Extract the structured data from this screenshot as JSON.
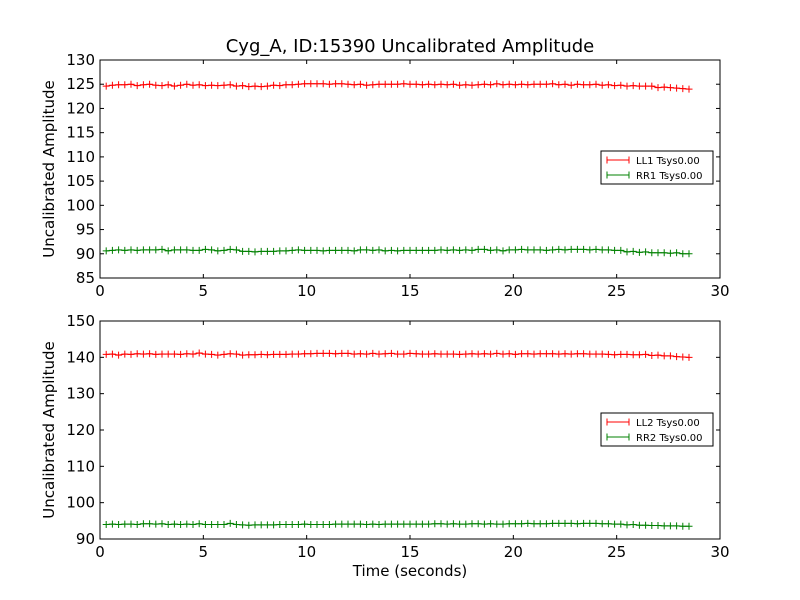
{
  "figure": {
    "title": "Cyg_A, ID:15390 Uncalibrated Amplitude",
    "background": "#ffffff"
  },
  "chart_data": [
    {
      "type": "line",
      "title": "Cyg_A, ID:15390 Uncalibrated Amplitude",
      "xlabel": "",
      "ylabel": "Uncalibrated Amplitude",
      "xlim": [
        0,
        30
      ],
      "ylim": [
        85,
        130
      ],
      "xticks": [
        0,
        5,
        10,
        15,
        20,
        25,
        30
      ],
      "yticks": [
        85,
        90,
        95,
        100,
        105,
        110,
        115,
        120,
        125,
        130
      ],
      "grid": false,
      "legend_position": "right",
      "x": [
        0.3,
        0.6,
        0.9,
        1.2,
        1.5,
        1.8,
        2.1,
        2.4,
        2.7,
        3.0,
        3.3,
        3.6,
        3.9,
        4.2,
        4.5,
        4.8,
        5.1,
        5.4,
        5.7,
        6.0,
        6.3,
        6.6,
        6.9,
        7.2,
        7.5,
        7.8,
        8.1,
        8.4,
        8.7,
        9.0,
        9.3,
        9.6,
        9.9,
        10.2,
        10.5,
        10.8,
        11.1,
        11.4,
        11.7,
        12.0,
        12.3,
        12.6,
        12.9,
        13.2,
        13.5,
        13.8,
        14.1,
        14.4,
        14.7,
        15.0,
        15.3,
        15.6,
        15.9,
        16.2,
        16.5,
        16.8,
        17.1,
        17.4,
        17.7,
        18.0,
        18.3,
        18.6,
        18.9,
        19.2,
        19.5,
        19.8,
        20.1,
        20.4,
        20.7,
        21.0,
        21.3,
        21.6,
        21.9,
        22.2,
        22.5,
        22.8,
        23.1,
        23.4,
        23.7,
        24.0,
        24.3,
        24.6,
        24.9,
        25.2,
        25.5,
        25.8,
        26.1,
        26.4,
        26.7,
        27.0,
        27.3,
        27.6,
        27.9,
        28.2,
        28.5
      ],
      "series": [
        {
          "name": "LL1 Tsys0.00",
          "color": "#ff0000",
          "values": [
            124.6,
            124.8,
            124.9,
            124.9,
            125.0,
            124.7,
            124.9,
            125.0,
            124.8,
            124.7,
            124.9,
            124.6,
            124.8,
            125.0,
            124.8,
            124.9,
            124.7,
            124.8,
            124.7,
            124.8,
            124.9,
            124.6,
            124.7,
            124.5,
            124.6,
            124.5,
            124.6,
            124.8,
            124.7,
            124.9,
            124.9,
            125.0,
            125.1,
            125.1,
            125.1,
            125.1,
            125.0,
            125.1,
            125.1,
            125.0,
            124.9,
            125.0,
            124.8,
            124.9,
            125.0,
            125.0,
            125.0,
            125.0,
            125.1,
            125.0,
            125.0,
            124.9,
            125.0,
            124.9,
            125.0,
            124.9,
            125.0,
            124.8,
            124.9,
            124.8,
            124.9,
            125.0,
            124.9,
            125.1,
            124.9,
            125.0,
            124.9,
            125.0,
            124.9,
            125.0,
            125.0,
            125.0,
            125.1,
            124.9,
            125.0,
            124.8,
            125.0,
            124.9,
            124.9,
            125.0,
            124.8,
            124.9,
            124.7,
            124.8,
            124.6,
            124.7,
            124.6,
            124.6,
            124.6,
            124.3,
            124.4,
            124.3,
            124.2,
            124.1,
            124.0
          ]
        },
        {
          "name": "RR1 Tsys0.00",
          "color": "#008000",
          "values": [
            90.6,
            90.7,
            90.8,
            90.7,
            90.8,
            90.7,
            90.8,
            90.8,
            90.8,
            90.9,
            90.6,
            90.8,
            90.8,
            90.8,
            90.7,
            90.7,
            90.9,
            90.8,
            90.6,
            90.7,
            90.9,
            90.8,
            90.5,
            90.5,
            90.4,
            90.5,
            90.5,
            90.5,
            90.6,
            90.6,
            90.7,
            90.8,
            90.7,
            90.7,
            90.7,
            90.6,
            90.7,
            90.7,
            90.7,
            90.7,
            90.6,
            90.8,
            90.8,
            90.7,
            90.8,
            90.6,
            90.7,
            90.6,
            90.7,
            90.7,
            90.7,
            90.7,
            90.7,
            90.7,
            90.8,
            90.7,
            90.8,
            90.7,
            90.8,
            90.7,
            90.9,
            90.9,
            90.7,
            90.8,
            90.6,
            90.8,
            90.8,
            90.9,
            90.8,
            90.8,
            90.8,
            90.7,
            90.8,
            90.9,
            90.8,
            90.9,
            90.9,
            90.9,
            90.8,
            90.9,
            90.8,
            90.8,
            90.7,
            90.7,
            90.4,
            90.5,
            90.3,
            90.4,
            90.2,
            90.2,
            90.2,
            90.1,
            90.2,
            90.0,
            90.0
          ]
        }
      ]
    },
    {
      "type": "line",
      "title": "",
      "xlabel": "Time (seconds)",
      "ylabel": "Uncalibrated Amplitude",
      "xlim": [
        0,
        30
      ],
      "ylim": [
        90,
        150
      ],
      "xticks": [
        0,
        5,
        10,
        15,
        20,
        25,
        30
      ],
      "yticks": [
        90,
        100,
        110,
        120,
        130,
        140,
        150
      ],
      "grid": false,
      "legend_position": "right",
      "x": [
        0.3,
        0.6,
        0.9,
        1.2,
        1.5,
        1.8,
        2.1,
        2.4,
        2.7,
        3.0,
        3.3,
        3.6,
        3.9,
        4.2,
        4.5,
        4.8,
        5.1,
        5.4,
        5.7,
        6.0,
        6.3,
        6.6,
        6.9,
        7.2,
        7.5,
        7.8,
        8.1,
        8.4,
        8.7,
        9.0,
        9.3,
        9.6,
        9.9,
        10.2,
        10.5,
        10.8,
        11.1,
        11.4,
        11.7,
        12.0,
        12.3,
        12.6,
        12.9,
        13.2,
        13.5,
        13.8,
        14.1,
        14.4,
        14.7,
        15.0,
        15.3,
        15.6,
        15.9,
        16.2,
        16.5,
        16.8,
        17.1,
        17.4,
        17.7,
        18.0,
        18.3,
        18.6,
        18.9,
        19.2,
        19.5,
        19.8,
        20.1,
        20.4,
        20.7,
        21.0,
        21.3,
        21.6,
        21.9,
        22.2,
        22.5,
        22.8,
        23.1,
        23.4,
        23.7,
        24.0,
        24.3,
        24.6,
        24.9,
        25.2,
        25.5,
        25.8,
        26.1,
        26.4,
        26.7,
        27.0,
        27.3,
        27.6,
        27.9,
        28.2,
        28.5
      ],
      "series": [
        {
          "name": "LL2 Tsys0.00",
          "color": "#ff0000",
          "values": [
            140.8,
            140.9,
            140.6,
            140.9,
            140.8,
            141.0,
            140.9,
            141.0,
            140.8,
            140.9,
            140.9,
            140.9,
            140.8,
            141.0,
            140.9,
            141.2,
            140.9,
            140.8,
            140.6,
            140.8,
            141.0,
            140.9,
            140.6,
            140.7,
            140.7,
            140.8,
            140.7,
            140.8,
            140.8,
            140.8,
            140.9,
            140.9,
            141.0,
            141.0,
            141.1,
            141.1,
            141.1,
            141.0,
            141.1,
            141.1,
            140.9,
            141.0,
            140.9,
            141.1,
            140.9,
            141.0,
            141.1,
            140.9,
            140.9,
            141.1,
            141.0,
            140.9,
            140.9,
            141.0,
            140.9,
            140.9,
            140.9,
            140.8,
            140.9,
            141.0,
            140.9,
            141.0,
            140.9,
            141.1,
            140.9,
            141.0,
            140.8,
            141.0,
            141.0,
            140.9,
            141.0,
            141.0,
            141.0,
            140.9,
            141.0,
            140.9,
            141.0,
            141.0,
            140.9,
            140.9,
            140.9,
            140.8,
            140.7,
            140.8,
            140.8,
            140.7,
            140.7,
            140.8,
            140.5,
            140.6,
            140.4,
            140.4,
            140.2,
            140.1,
            140.0
          ]
        },
        {
          "name": "RR2 Tsys0.00",
          "color": "#008000",
          "values": [
            94.0,
            94.1,
            94.0,
            94.1,
            94.1,
            94.0,
            94.2,
            94.2,
            94.1,
            94.2,
            94.0,
            94.1,
            94.0,
            94.1,
            94.0,
            94.2,
            94.0,
            94.0,
            94.0,
            94.0,
            94.3,
            94.0,
            93.9,
            93.8,
            93.9,
            93.9,
            93.9,
            93.9,
            94.0,
            94.0,
            94.0,
            94.0,
            94.1,
            94.0,
            94.0,
            94.0,
            94.0,
            94.1,
            94.1,
            94.1,
            94.1,
            94.1,
            94.0,
            94.1,
            94.0,
            94.1,
            94.1,
            94.1,
            94.1,
            94.1,
            94.1,
            94.1,
            94.1,
            94.2,
            94.2,
            94.1,
            94.2,
            94.1,
            94.1,
            94.2,
            94.2,
            94.1,
            94.2,
            94.1,
            94.1,
            94.2,
            94.2,
            94.2,
            94.3,
            94.2,
            94.2,
            94.2,
            94.3,
            94.3,
            94.3,
            94.3,
            94.2,
            94.3,
            94.3,
            94.3,
            94.2,
            94.2,
            94.1,
            94.1,
            93.9,
            94.0,
            93.8,
            93.8,
            93.7,
            93.7,
            93.6,
            93.6,
            93.6,
            93.5,
            93.5
          ]
        }
      ]
    }
  ]
}
